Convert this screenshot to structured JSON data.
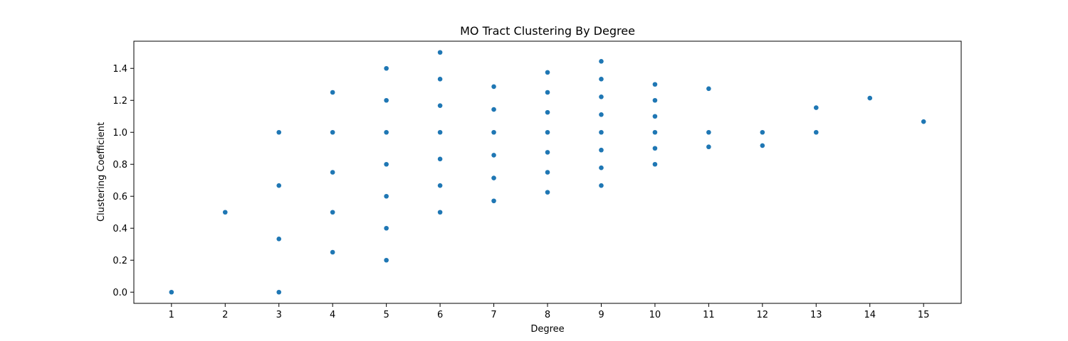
{
  "chart_data": {
    "type": "scatter",
    "title": "MO Tract Clustering By Degree",
    "xlabel": "Degree",
    "ylabel": "Clustering Coefficient",
    "xlim": [
      0.3,
      15.7
    ],
    "ylim": [
      -0.07,
      1.57
    ],
    "x_ticks": [
      1,
      2,
      3,
      4,
      5,
      6,
      7,
      8,
      9,
      10,
      11,
      12,
      13,
      14,
      15
    ],
    "y_ticks": [
      0.0,
      0.2,
      0.4,
      0.6,
      0.8,
      1.0,
      1.2,
      1.4
    ],
    "y_tick_labels": [
      "0.0",
      "0.2",
      "0.4",
      "0.6",
      "0.8",
      "1.0",
      "1.2",
      "1.4"
    ],
    "grid": false,
    "marker_color": "#1f77b4",
    "points": [
      [
        1,
        0.0
      ],
      [
        2,
        0.5
      ],
      [
        3,
        0.0
      ],
      [
        3,
        0.333
      ],
      [
        3,
        0.667
      ],
      [
        3,
        1.0
      ],
      [
        4,
        0.25
      ],
      [
        4,
        0.5
      ],
      [
        4,
        0.75
      ],
      [
        4,
        1.0
      ],
      [
        4,
        1.25
      ],
      [
        5,
        0.2
      ],
      [
        5,
        0.4
      ],
      [
        5,
        0.6
      ],
      [
        5,
        0.8
      ],
      [
        5,
        1.0
      ],
      [
        5,
        1.2
      ],
      [
        5,
        1.4
      ],
      [
        6,
        0.5
      ],
      [
        6,
        0.667
      ],
      [
        6,
        0.833
      ],
      [
        6,
        1.0
      ],
      [
        6,
        1.167
      ],
      [
        6,
        1.333
      ],
      [
        6,
        1.5
      ],
      [
        7,
        0.571
      ],
      [
        7,
        0.714
      ],
      [
        7,
        0.857
      ],
      [
        7,
        1.0
      ],
      [
        7,
        1.143
      ],
      [
        7,
        1.286
      ],
      [
        8,
        0.625
      ],
      [
        8,
        0.75
      ],
      [
        8,
        0.875
      ],
      [
        8,
        1.0
      ],
      [
        8,
        1.125
      ],
      [
        8,
        1.25
      ],
      [
        8,
        1.375
      ],
      [
        9,
        0.667
      ],
      [
        9,
        0.778
      ],
      [
        9,
        0.889
      ],
      [
        9,
        1.0
      ],
      [
        9,
        1.111
      ],
      [
        9,
        1.222
      ],
      [
        9,
        1.333
      ],
      [
        9,
        1.444
      ],
      [
        10,
        0.8
      ],
      [
        10,
        0.9
      ],
      [
        10,
        1.0
      ],
      [
        10,
        1.1
      ],
      [
        10,
        1.2
      ],
      [
        10,
        1.3
      ],
      [
        11,
        0.909
      ],
      [
        11,
        1.0
      ],
      [
        11,
        1.273
      ],
      [
        12,
        0.917
      ],
      [
        12,
        1.0
      ],
      [
        13,
        1.0
      ],
      [
        13,
        1.154
      ],
      [
        14,
        1.214
      ],
      [
        15,
        1.067
      ]
    ]
  }
}
